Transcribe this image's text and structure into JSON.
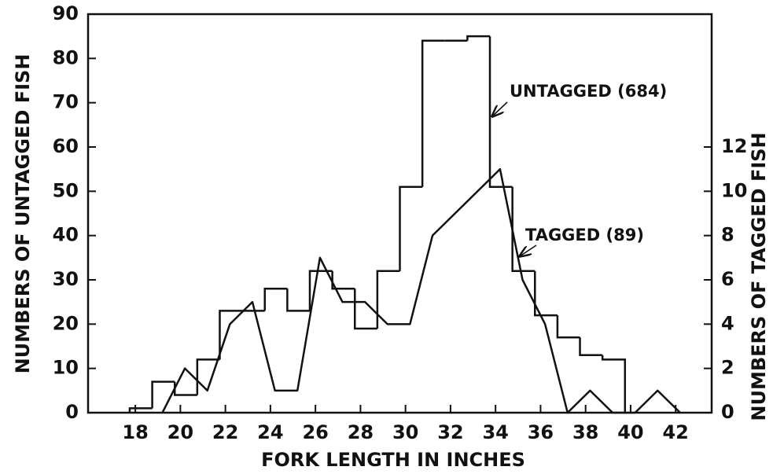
{
  "chart_data": {
    "type": "histogram",
    "xlabel": "FORK LENGTH IN INCHES",
    "ylabel": "NUMBERS OF UNTAGGED FISH",
    "y2label": "NUMBERS OF TAGGED FISH",
    "xlim": [
      15.9,
      43.6
    ],
    "xticks": [
      18,
      20,
      22,
      24,
      26,
      28,
      30,
      32,
      34,
      36,
      38,
      40,
      42
    ],
    "ylim": [
      0,
      90
    ],
    "yticks": [
      0,
      10,
      20,
      30,
      40,
      50,
      60,
      70,
      80,
      90
    ],
    "y2lim": [
      0,
      18
    ],
    "y2ticks": [
      0,
      2,
      4,
      6,
      8,
      10,
      12
    ],
    "series": [
      {
        "type": "histogram",
        "color": "#111111",
        "bins": [
          17.75,
          18.75,
          19.75,
          20.75,
          21.75,
          22.75,
          23.75,
          24.75,
          25.75,
          26.75,
          27.75,
          28.75,
          29.75,
          30.75,
          31.75,
          32.75,
          33.75,
          34.75,
          35.75,
          36.75,
          37.75,
          38.75,
          39.75
        ],
        "values": [
          1,
          7,
          4,
          12,
          23,
          23,
          28,
          23,
          32,
          28,
          19,
          32,
          51,
          84,
          84,
          85,
          51,
          32,
          22,
          17,
          13,
          12
        ]
      },
      {
        "type": "line",
        "axis": "y2",
        "color": "#111111",
        "x": [
          19.2,
          20.2,
          21.2,
          22.2,
          23.2,
          24.2,
          25.2,
          26.2,
          27.2,
          28.2,
          29.2,
          30.2,
          31.2,
          32.2,
          33.2,
          34.2,
          35.2,
          36.2,
          37.2,
          38.2,
          39.2,
          40.2,
          41.2,
          42.2
        ],
        "values": [
          0,
          2,
          1,
          4,
          5,
          1,
          1,
          7,
          5,
          5,
          4,
          4,
          8,
          9,
          10,
          11,
          6,
          4,
          0,
          1,
          0,
          0,
          1,
          0
        ]
      }
    ],
    "annotations": [
      {
        "text": "UNTAGGED (684)"
      },
      {
        "text": "TAGGED (89)"
      }
    ]
  }
}
